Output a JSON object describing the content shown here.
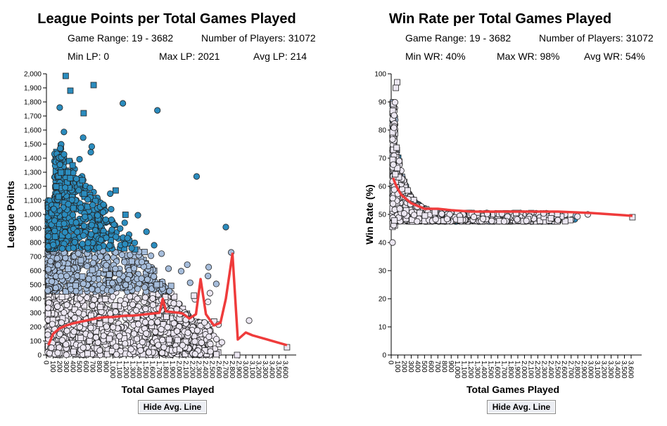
{
  "colors": {
    "high": "#2b8cbe",
    "mid": "#a6bddb",
    "low": "#ece7f2",
    "avg_line": "#ef3b3b",
    "stroke": "#222222"
  },
  "buttons": {
    "hide_avg_line": "Hide Avg. Line"
  },
  "left": {
    "title": "League Points per Total Games Played",
    "game_range": "Game Range: 19 - 3682",
    "num_players": "Number of Players: 31072",
    "min": "Min LP: 0",
    "max": "Max LP: 2021",
    "avg": "Avg LP: 214"
  },
  "right": {
    "title": "Win Rate per Total Games Played",
    "game_range": "Game Range: 19 - 3682",
    "num_players": "Number of Players: 31072",
    "min": "Min WR: 40%",
    "max": "Max WR: 98%",
    "avg": "Avg WR: 54%"
  },
  "chart_data": [
    {
      "type": "scatter",
      "title": "League Points per Total Games Played",
      "xlabel": "Total Games Played",
      "ylabel": "League Points",
      "xlim": [
        0,
        3682
      ],
      "ylim": [
        0,
        2021
      ],
      "xticks": [
        0,
        100,
        200,
        300,
        400,
        500,
        600,
        700,
        800,
        900,
        1000,
        1100,
        1200,
        1300,
        1400,
        1500,
        1600,
        1700,
        1800,
        1900,
        2000,
        2100,
        2200,
        2300,
        2400,
        2500,
        2600,
        2700,
        2800,
        2900,
        3000,
        3100,
        3200,
        3300,
        3400,
        3500,
        3600
      ],
      "yticks": [
        0,
        100,
        200,
        300,
        400,
        500,
        600,
        700,
        800,
        900,
        1000,
        1100,
        1200,
        1300,
        1400,
        1500,
        1600,
        1700,
        1800,
        1900,
        2000
      ],
      "avg_line": {
        "x": [
          30,
          100,
          200,
          300,
          400,
          500,
          600,
          700,
          800,
          900,
          1000,
          1100,
          1200,
          1300,
          1400,
          1500,
          1600,
          1700,
          1750,
          1800,
          1900,
          2000,
          2050,
          2150,
          2250,
          2320,
          2400,
          2520,
          2620,
          2700,
          2800,
          2880,
          3000,
          3100,
          3620
        ],
        "y": [
          70,
          150,
          190,
          210,
          225,
          235,
          245,
          255,
          265,
          270,
          270,
          275,
          280,
          280,
          285,
          290,
          295,
          300,
          400,
          310,
          305,
          300,
          295,
          260,
          290,
          540,
          290,
          210,
          230,
          400,
          720,
          110,
          160,
          140,
          70
        ]
      },
      "highlight_points": [
        {
          "x": 290,
          "y": 1985,
          "shape": "square",
          "tier": "high"
        },
        {
          "x": 360,
          "y": 1880,
          "shape": "square",
          "tier": "high"
        },
        {
          "x": 710,
          "y": 1920,
          "shape": "square",
          "tier": "high"
        },
        {
          "x": 1150,
          "y": 1790,
          "shape": "circle",
          "tier": "high"
        },
        {
          "x": 1670,
          "y": 1740,
          "shape": "circle",
          "tier": "high"
        },
        {
          "x": 200,
          "y": 1760,
          "shape": "circle",
          "tier": "high"
        },
        {
          "x": 560,
          "y": 1720,
          "shape": "square",
          "tier": "high"
        },
        {
          "x": 2780,
          "y": 730,
          "shape": "circle",
          "tier": "mid"
        },
        {
          "x": 2460,
          "y": 440,
          "shape": "circle",
          "tier": "low"
        },
        {
          "x": 2640,
          "y": 90,
          "shape": "circle",
          "tier": "low"
        },
        {
          "x": 2870,
          "y": 0,
          "shape": "square",
          "tier": "low"
        },
        {
          "x": 3050,
          "y": 245,
          "shape": "circle",
          "tier": "low"
        },
        {
          "x": 3620,
          "y": 55,
          "shape": "square",
          "tier": "low"
        },
        {
          "x": 2700,
          "y": 910,
          "shape": "circle",
          "tier": "high"
        },
        {
          "x": 2260,
          "y": 1270,
          "shape": "circle",
          "tier": "high"
        }
      ]
    },
    {
      "type": "scatter",
      "title": "Win Rate per Total Games Played",
      "xlabel": "Total Games Played",
      "ylabel": "Win Rate (%)",
      "xlim": [
        0,
        3682
      ],
      "ylim": [
        0,
        100
      ],
      "xticks": [
        0,
        100,
        200,
        300,
        400,
        500,
        600,
        700,
        800,
        900,
        1000,
        1100,
        1200,
        1300,
        1400,
        1500,
        1600,
        1700,
        1800,
        1900,
        2000,
        2100,
        2200,
        2300,
        2400,
        2500,
        2600,
        2700,
        2800,
        2900,
        3000,
        3100,
        3200,
        3300,
        3400,
        3500,
        3600
      ],
      "yticks": [
        0,
        10,
        20,
        30,
        40,
        50,
        60,
        70,
        80,
        90,
        100
      ],
      "avg_line": {
        "x": [
          30,
          60,
          100,
          150,
          200,
          300,
          400,
          500,
          700,
          900,
          1200,
          1500,
          2000,
          2500,
          3000,
          3620
        ],
        "y": [
          63,
          61,
          59,
          57,
          56,
          54,
          53,
          52,
          52,
          51.5,
          51,
          51,
          51,
          51,
          50.5,
          49.5
        ]
      },
      "highlight_points": [
        {
          "x": 90,
          "y": 97,
          "shape": "square",
          "tier": "low"
        },
        {
          "x": 70,
          "y": 95,
          "shape": "square",
          "tier": "low"
        },
        {
          "x": 20,
          "y": 40,
          "shape": "circle",
          "tier": "low"
        },
        {
          "x": 3620,
          "y": 49,
          "shape": "square",
          "tier": "low"
        },
        {
          "x": 2950,
          "y": 50,
          "shape": "circle",
          "tier": "low"
        }
      ]
    }
  ]
}
